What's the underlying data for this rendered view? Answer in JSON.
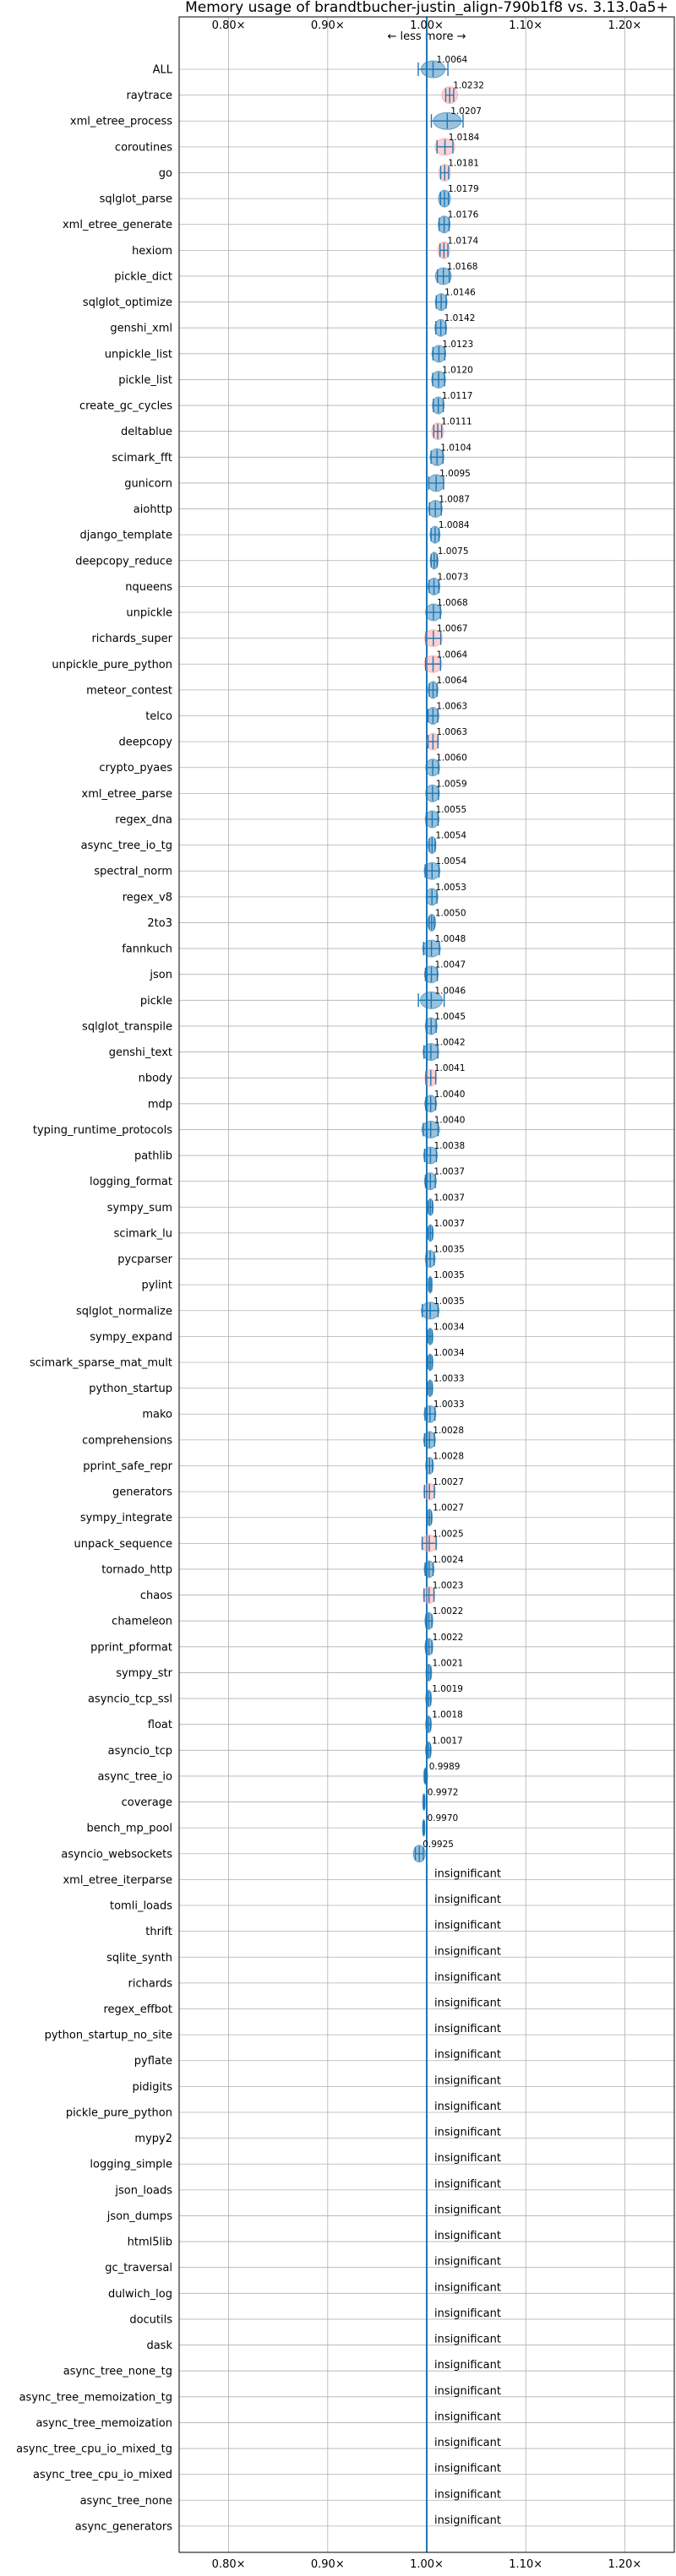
{
  "chart_data": {
    "type": "violin",
    "title": "Memory usage of brandtbucher-justin_align-790b1f8 vs. 3.13.0a5+",
    "annotation": "← less   more →",
    "xlim": [
      0.75,
      1.25
    ],
    "xticks": [
      0.8,
      0.9,
      1.0,
      1.1,
      1.2
    ],
    "xtick_labels": [
      "0.80×",
      "0.90×",
      "1.00×",
      "1.10×",
      "1.20×"
    ],
    "grid": true,
    "insignificant_label": "insignificant",
    "colors": {
      "better": "#1f77b4",
      "worse": "#ff9896",
      "line": "#1f77b4"
    },
    "benchmarks": [
      {
        "name": "ALL",
        "value": 1.0064,
        "label": "1.0064",
        "spread": 0.03,
        "dist": 0.012,
        "color": "blue"
      },
      {
        "name": "raytrace",
        "value": 1.0232,
        "label": "1.0232",
        "spread": 0.008,
        "dist": 0.008,
        "color": "red"
      },
      {
        "name": "xml_etree_process",
        "value": 1.0207,
        "label": "1.0207",
        "spread": 0.032,
        "dist": 0.014,
        "color": "blue"
      },
      {
        "name": "coroutines",
        "value": 1.0184,
        "label": "1.0184",
        "spread": 0.016,
        "dist": 0.01,
        "color": "red"
      },
      {
        "name": "go",
        "value": 1.0181,
        "label": "1.0181",
        "spread": 0.008,
        "dist": 0.006,
        "color": "red"
      },
      {
        "name": "sqlglot_parse",
        "value": 1.0179,
        "label": "1.0179",
        "spread": 0.008,
        "dist": 0.006,
        "color": "blue"
      },
      {
        "name": "xml_etree_generate",
        "value": 1.0176,
        "label": "1.0176",
        "spread": 0.01,
        "dist": 0.006,
        "color": "blue"
      },
      {
        "name": "hexiom",
        "value": 1.0174,
        "label": "1.0174",
        "spread": 0.008,
        "dist": 0.006,
        "color": "red"
      },
      {
        "name": "pickle_dict",
        "value": 1.0168,
        "label": "1.0168",
        "spread": 0.012,
        "dist": 0.008,
        "color": "blue"
      },
      {
        "name": "sqlglot_optimize",
        "value": 1.0146,
        "label": "1.0146",
        "spread": 0.01,
        "dist": 0.006,
        "color": "blue"
      },
      {
        "name": "genshi_xml",
        "value": 1.0142,
        "label": "1.0142",
        "spread": 0.01,
        "dist": 0.006,
        "color": "blue"
      },
      {
        "name": "unpickle_list",
        "value": 1.0123,
        "label": "1.0123",
        "spread": 0.012,
        "dist": 0.007,
        "color": "blue"
      },
      {
        "name": "pickle_list",
        "value": 1.012,
        "label": "1.0120",
        "spread": 0.012,
        "dist": 0.007,
        "color": "blue"
      },
      {
        "name": "create_gc_cycles",
        "value": 1.0117,
        "label": "1.0117",
        "spread": 0.01,
        "dist": 0.006,
        "color": "blue"
      },
      {
        "name": "deltablue",
        "value": 1.0111,
        "label": "1.0111",
        "spread": 0.008,
        "dist": 0.006,
        "color": "red"
      },
      {
        "name": "scimark_fft",
        "value": 1.0104,
        "label": "1.0104",
        "spread": 0.012,
        "dist": 0.007,
        "color": "blue"
      },
      {
        "name": "gunicorn",
        "value": 1.0095,
        "label": "1.0095",
        "spread": 0.015,
        "dist": 0.008,
        "color": "blue"
      },
      {
        "name": "aiohttp",
        "value": 1.0087,
        "label": "1.0087",
        "spread": 0.012,
        "dist": 0.007,
        "color": "blue"
      },
      {
        "name": "django_template",
        "value": 1.0084,
        "label": "1.0084",
        "spread": 0.008,
        "dist": 0.005,
        "color": "blue"
      },
      {
        "name": "deepcopy_reduce",
        "value": 1.0075,
        "label": "1.0075",
        "spread": 0.006,
        "dist": 0.004,
        "color": "blue"
      },
      {
        "name": "nqueens",
        "value": 1.0073,
        "label": "1.0073",
        "spread": 0.01,
        "dist": 0.006,
        "color": "blue"
      },
      {
        "name": "unpickle",
        "value": 1.0068,
        "label": "1.0068",
        "spread": 0.014,
        "dist": 0.008,
        "color": "blue"
      },
      {
        "name": "richards_super",
        "value": 1.0067,
        "label": "1.0067",
        "spread": 0.015,
        "dist": 0.009,
        "color": "red"
      },
      {
        "name": "unpickle_pure_python",
        "value": 1.0064,
        "label": "1.0064",
        "spread": 0.015,
        "dist": 0.009,
        "color": "red"
      },
      {
        "name": "meteor_contest",
        "value": 1.0064,
        "label": "1.0064",
        "spread": 0.008,
        "dist": 0.005,
        "color": "blue"
      },
      {
        "name": "telco",
        "value": 1.0063,
        "label": "1.0063",
        "spread": 0.01,
        "dist": 0.006,
        "color": "blue"
      },
      {
        "name": "deepcopy",
        "value": 1.0063,
        "label": "1.0063",
        "spread": 0.01,
        "dist": 0.006,
        "color": "red"
      },
      {
        "name": "crypto_pyaes",
        "value": 1.006,
        "label": "1.0060",
        "spread": 0.012,
        "dist": 0.007,
        "color": "blue"
      },
      {
        "name": "xml_etree_parse",
        "value": 1.0059,
        "label": "1.0059",
        "spread": 0.012,
        "dist": 0.007,
        "color": "blue"
      },
      {
        "name": "regex_dna",
        "value": 1.0055,
        "label": "1.0055",
        "spread": 0.012,
        "dist": 0.007,
        "color": "blue"
      },
      {
        "name": "async_tree_io_tg",
        "value": 1.0054,
        "label": "1.0054",
        "spread": 0.006,
        "dist": 0.004,
        "color": "blue"
      },
      {
        "name": "spectral_norm",
        "value": 1.0054,
        "label": "1.0054",
        "spread": 0.014,
        "dist": 0.008,
        "color": "blue"
      },
      {
        "name": "regex_v8",
        "value": 1.0053,
        "label": "1.0053",
        "spread": 0.01,
        "dist": 0.006,
        "color": "blue"
      },
      {
        "name": "2to3",
        "value": 1.005,
        "label": "1.0050",
        "spread": 0.005,
        "dist": 0.004,
        "color": "blue"
      },
      {
        "name": "fannkuch",
        "value": 1.0048,
        "label": "1.0048",
        "spread": 0.016,
        "dist": 0.009,
        "color": "blue"
      },
      {
        "name": "json",
        "value": 1.0047,
        "label": "1.0047",
        "spread": 0.012,
        "dist": 0.007,
        "color": "blue"
      },
      {
        "name": "pickle",
        "value": 1.0046,
        "label": "1.0046",
        "spread": 0.026,
        "dist": 0.011,
        "color": "blue"
      },
      {
        "name": "sqlglot_transpile",
        "value": 1.0045,
        "label": "1.0045",
        "spread": 0.01,
        "dist": 0.006,
        "color": "blue"
      },
      {
        "name": "genshi_text",
        "value": 1.0042,
        "label": "1.0042",
        "spread": 0.014,
        "dist": 0.008,
        "color": "blue"
      },
      {
        "name": "nbody",
        "value": 1.0041,
        "label": "1.0041",
        "spread": 0.01,
        "dist": 0.006,
        "color": "red"
      },
      {
        "name": "mdp",
        "value": 1.004,
        "label": "1.0040",
        "spread": 0.01,
        "dist": 0.006,
        "color": "blue"
      },
      {
        "name": "typing_runtime_protocols",
        "value": 1.004,
        "label": "1.0040",
        "spread": 0.015,
        "dist": 0.009,
        "color": "blue"
      },
      {
        "name": "pathlib",
        "value": 1.0038,
        "label": "1.0038",
        "spread": 0.012,
        "dist": 0.007,
        "color": "blue"
      },
      {
        "name": "logging_format",
        "value": 1.0037,
        "label": "1.0037",
        "spread": 0.01,
        "dist": 0.006,
        "color": "blue"
      },
      {
        "name": "sympy_sum",
        "value": 1.0037,
        "label": "1.0037",
        "spread": 0.004,
        "dist": 0.003,
        "color": "blue"
      },
      {
        "name": "scimark_lu",
        "value": 1.0037,
        "label": "1.0037",
        "spread": 0.004,
        "dist": 0.003,
        "color": "blue"
      },
      {
        "name": "pycparser",
        "value": 1.0035,
        "label": "1.0035",
        "spread": 0.008,
        "dist": 0.005,
        "color": "blue"
      },
      {
        "name": "pylint",
        "value": 1.0035,
        "label": "1.0035",
        "spread": 0.003,
        "dist": 0.002,
        "color": "blue"
      },
      {
        "name": "sqlglot_normalize",
        "value": 1.0035,
        "label": "1.0035",
        "spread": 0.016,
        "dist": 0.009,
        "color": "blue"
      },
      {
        "name": "sympy_expand",
        "value": 1.0034,
        "label": "1.0034",
        "spread": 0.004,
        "dist": 0.003,
        "color": "blue"
      },
      {
        "name": "scimark_sparse_mat_mult",
        "value": 1.0034,
        "label": "1.0034",
        "spread": 0.004,
        "dist": 0.003,
        "color": "blue"
      },
      {
        "name": "python_startup",
        "value": 1.0033,
        "label": "1.0033",
        "spread": 0.004,
        "dist": 0.003,
        "color": "blue"
      },
      {
        "name": "mako",
        "value": 1.0033,
        "label": "1.0033",
        "spread": 0.01,
        "dist": 0.006,
        "color": "blue"
      },
      {
        "name": "comprehensions",
        "value": 1.0028,
        "label": "1.0028",
        "spread": 0.01,
        "dist": 0.006,
        "color": "blue"
      },
      {
        "name": "pprint_safe_repr",
        "value": 1.0028,
        "label": "1.0028",
        "spread": 0.006,
        "dist": 0.004,
        "color": "blue"
      },
      {
        "name": "generators",
        "value": 1.0027,
        "label": "1.0027",
        "spread": 0.01,
        "dist": 0.006,
        "color": "red"
      },
      {
        "name": "sympy_integrate",
        "value": 1.0027,
        "label": "1.0027",
        "spread": 0.004,
        "dist": 0.003,
        "color": "blue"
      },
      {
        "name": "unpack_sequence",
        "value": 1.0025,
        "label": "1.0025",
        "spread": 0.014,
        "dist": 0.008,
        "color": "red"
      },
      {
        "name": "tornado_http",
        "value": 1.0024,
        "label": "1.0024",
        "spread": 0.008,
        "dist": 0.005,
        "color": "blue"
      },
      {
        "name": "chaos",
        "value": 1.0023,
        "label": "1.0023",
        "spread": 0.01,
        "dist": 0.006,
        "color": "red"
      },
      {
        "name": "chameleon",
        "value": 1.0022,
        "label": "1.0022",
        "spread": 0.006,
        "dist": 0.004,
        "color": "blue"
      },
      {
        "name": "pprint_pformat",
        "value": 1.0022,
        "label": "1.0022",
        "spread": 0.006,
        "dist": 0.004,
        "color": "blue"
      },
      {
        "name": "sympy_str",
        "value": 1.0021,
        "label": "1.0021",
        "spread": 0.004,
        "dist": 0.003,
        "color": "blue"
      },
      {
        "name": "asyncio_tcp_ssl",
        "value": 1.0019,
        "label": "1.0019",
        "spread": 0.004,
        "dist": 0.003,
        "color": "blue"
      },
      {
        "name": "float",
        "value": 1.0018,
        "label": "1.0018",
        "spread": 0.004,
        "dist": 0.003,
        "color": "blue"
      },
      {
        "name": "asyncio_tcp",
        "value": 1.0017,
        "label": "1.0017",
        "spread": 0.004,
        "dist": 0.003,
        "color": "blue"
      },
      {
        "name": "async_tree_io",
        "value": 0.9989,
        "label": "0.9989",
        "spread": 0.002,
        "dist": 0.002,
        "color": "blue"
      },
      {
        "name": "coverage",
        "value": 0.9972,
        "label": "0.9972",
        "spread": 0.001,
        "dist": 0.001,
        "color": "blue"
      },
      {
        "name": "bench_mp_pool",
        "value": 0.997,
        "label": "0.9970",
        "spread": 0.001,
        "dist": 0.001,
        "color": "blue"
      },
      {
        "name": "asyncio_websockets",
        "value": 0.9925,
        "label": "0.9925",
        "spread": 0.008,
        "dist": 0.006,
        "color": "blue"
      },
      {
        "name": "xml_etree_iterparse",
        "value": null,
        "label": "",
        "spread": 0,
        "dist": 0,
        "color": "none"
      },
      {
        "name": "tomli_loads",
        "value": null,
        "label": "",
        "spread": 0,
        "dist": 0,
        "color": "none"
      },
      {
        "name": "thrift",
        "value": null,
        "label": "",
        "spread": 0,
        "dist": 0,
        "color": "none"
      },
      {
        "name": "sqlite_synth",
        "value": null,
        "label": "",
        "spread": 0,
        "dist": 0,
        "color": "none"
      },
      {
        "name": "richards",
        "value": null,
        "label": "",
        "spread": 0,
        "dist": 0,
        "color": "none"
      },
      {
        "name": "regex_effbot",
        "value": null,
        "label": "",
        "spread": 0,
        "dist": 0,
        "color": "none"
      },
      {
        "name": "python_startup_no_site",
        "value": null,
        "label": "",
        "spread": 0,
        "dist": 0,
        "color": "none"
      },
      {
        "name": "pyflate",
        "value": null,
        "label": "",
        "spread": 0,
        "dist": 0,
        "color": "none"
      },
      {
        "name": "pidigits",
        "value": null,
        "label": "",
        "spread": 0,
        "dist": 0,
        "color": "none"
      },
      {
        "name": "pickle_pure_python",
        "value": null,
        "label": "",
        "spread": 0,
        "dist": 0,
        "color": "none"
      },
      {
        "name": "mypy2",
        "value": null,
        "label": "",
        "spread": 0,
        "dist": 0,
        "color": "none"
      },
      {
        "name": "logging_simple",
        "value": null,
        "label": "",
        "spread": 0,
        "dist": 0,
        "color": "none"
      },
      {
        "name": "json_loads",
        "value": null,
        "label": "",
        "spread": 0,
        "dist": 0,
        "color": "none"
      },
      {
        "name": "json_dumps",
        "value": null,
        "label": "",
        "spread": 0,
        "dist": 0,
        "color": "none"
      },
      {
        "name": "html5lib",
        "value": null,
        "label": "",
        "spread": 0,
        "dist": 0,
        "color": "none"
      },
      {
        "name": "gc_traversal",
        "value": null,
        "label": "",
        "spread": 0,
        "dist": 0,
        "color": "none"
      },
      {
        "name": "dulwich_log",
        "value": null,
        "label": "",
        "spread": 0,
        "dist": 0,
        "color": "none"
      },
      {
        "name": "docutils",
        "value": null,
        "label": "",
        "spread": 0,
        "dist": 0,
        "color": "none"
      },
      {
        "name": "dask",
        "value": null,
        "label": "",
        "spread": 0,
        "dist": 0,
        "color": "none"
      },
      {
        "name": "async_tree_none_tg",
        "value": null,
        "label": "",
        "spread": 0,
        "dist": 0,
        "color": "none"
      },
      {
        "name": "async_tree_memoization_tg",
        "value": null,
        "label": "",
        "spread": 0,
        "dist": 0,
        "color": "none"
      },
      {
        "name": "async_tree_memoization",
        "value": null,
        "label": "",
        "spread": 0,
        "dist": 0,
        "color": "none"
      },
      {
        "name": "async_tree_cpu_io_mixed_tg",
        "value": null,
        "label": "",
        "spread": 0,
        "dist": 0,
        "color": "none"
      },
      {
        "name": "async_tree_cpu_io_mixed",
        "value": null,
        "label": "",
        "spread": 0,
        "dist": 0,
        "color": "none"
      },
      {
        "name": "async_tree_none",
        "value": null,
        "label": "",
        "spread": 0,
        "dist": 0,
        "color": "none"
      },
      {
        "name": "async_generators",
        "value": null,
        "label": "",
        "spread": 0,
        "dist": 0,
        "color": "none"
      }
    ]
  }
}
